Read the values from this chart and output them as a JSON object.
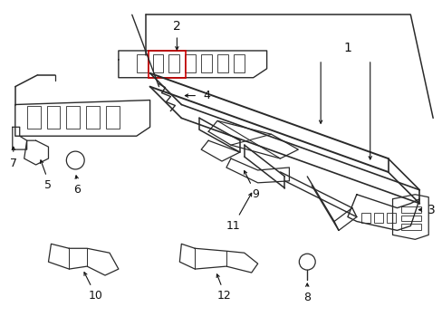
{
  "background": "#ffffff",
  "line_color": "#2a2a2a",
  "red_color": "#cc0000",
  "figsize": [
    4.89,
    3.6
  ],
  "dpi": 100
}
